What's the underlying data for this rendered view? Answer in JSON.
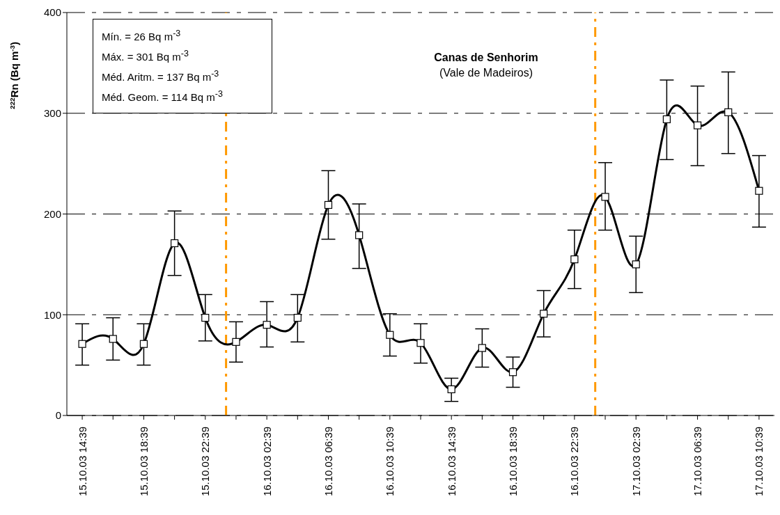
{
  "chart_data": {
    "type": "line",
    "title": "Canas de Senhorim",
    "subtitle": "(Vale de Madeiros)",
    "ylabel": "$^{222}$Rn (Bq m$^{-3}$)",
    "annotations": [
      "Mín. = 26 Bq m$^{-3}$",
      "Máx. = 301 Bq m$^{-3}$",
      "Méd. Aritm. = 137 Bq m$^{-3}$",
      "Méd. Geom. = 114 Bq m$^{-3}$"
    ],
    "x": [
      "--10-15T14:39",
      "--10-15T16:39",
      "--10-15T18:39",
      "--10-15T20:39",
      "--10-15T22:39",
      "--10-16T00:39",
      "--10-16T02:39",
      "--10-16T04:39",
      "--10-16T06:39",
      "--10-16T08:39",
      "--10-16T10:39",
      "--10-16T12:39",
      "--10-16T14:39",
      "--10-16T16:39",
      "--10-16T18:39",
      "--10-16T20:39",
      "--10-16T22:39",
      "--10-17T00:39",
      "--10-17T02:39",
      "--10-17T04:39",
      "--10-17T06:39",
      "--10-17T08:39",
      "--10-17T10:39"
    ],
    "series": [
      {
        "color": "#000000",
        "values": [
          71,
          76,
          71,
          171,
          97,
          73,
          90,
          97,
          209,
          179,
          80,
          72,
          26,
          67,
          43,
          101,
          155,
          217,
          150,
          294,
          288,
          301,
          223
        ],
        "errors": [
          [
            50,
            91
          ],
          [
            55,
            97
          ],
          [
            50,
            91
          ],
          [
            139,
            203
          ],
          [
            74,
            120
          ],
          [
            53,
            93
          ],
          [
            68,
            113
          ],
          [
            73,
            120
          ],
          [
            175,
            243
          ],
          [
            146,
            210
          ],
          [
            59,
            101
          ],
          [
            52,
            91
          ],
          [
            14,
            37
          ],
          [
            48,
            86
          ],
          [
            28,
            58
          ],
          [
            78,
            124
          ],
          [
            126,
            184
          ],
          [
            184,
            251
          ],
          [
            122,
            178
          ],
          [
            254,
            333
          ],
          [
            248,
            327
          ],
          [
            260,
            341
          ],
          [
            187,
            258
          ]
        ]
      }
    ],
    "xlim": [
      "--10-15T13:39",
      "--10-17T11:39"
    ],
    "xticks": [
      {
        "value": "--10-15T14:39",
        "label": "15.10.03 14:39"
      },
      {
        "value": "--10-15T16:39",
        "label": null
      },
      {
        "value": "--10-15T18:39",
        "label": "15.10.03 18:39"
      },
      {
        "value": "--10-15T20:39",
        "label": null
      },
      {
        "value": "--10-15T22:39",
        "label": "15.10.03 22:39"
      },
      {
        "value": "--10-16T00:39",
        "label": null
      },
      {
        "value": "--10-16T02:39",
        "label": "16.10.03 02:39"
      },
      {
        "value": "--10-16T04:39",
        "label": null
      },
      {
        "value": "--10-16T06:39",
        "label": "16.10.03 06:39"
      },
      {
        "value": "--10-16T08:39",
        "label": null
      },
      {
        "value": "--10-16T10:39",
        "label": "16.10.03 10:39"
      },
      {
        "value": "--10-16T12:39",
        "label": null
      },
      {
        "value": "--10-16T14:39",
        "label": "16.10.03 14:39"
      },
      {
        "value": "--10-16T16:39",
        "label": null
      },
      {
        "value": "--10-16T18:39",
        "label": "16.10.03 18:39"
      },
      {
        "value": "--10-16T20:39",
        "label": null
      },
      {
        "value": "--10-16T22:39",
        "label": "16.10.03 22:39"
      },
      {
        "value": "--10-17T00:39",
        "label": null
      },
      {
        "value": "--10-17T02:39",
        "label": "17.10.03 02:39"
      },
      {
        "value": "--10-17T04:39",
        "label": null
      },
      {
        "value": "--10-17T06:39",
        "label": "17.10.03 06:39"
      },
      {
        "value": "--10-17T08:39",
        "label": null
      },
      {
        "value": "--10-17T10:39",
        "label": "17.10.03 10:39"
      }
    ],
    "ylim": [
      0,
      400
    ],
    "yticks": [
      0,
      100,
      200,
      300,
      400
    ],
    "ref_lines": [
      {
        "axis": "x",
        "value": "--10-16T00:00",
        "color": "#ff9900",
        "line_style": "dashed"
      },
      {
        "axis": "x",
        "value": "--10-17T00:00",
        "color": "#ff9900",
        "line_style": "dashed"
      }
    ],
    "grid": "y",
    "marker": "square",
    "line_style": "solid"
  }
}
